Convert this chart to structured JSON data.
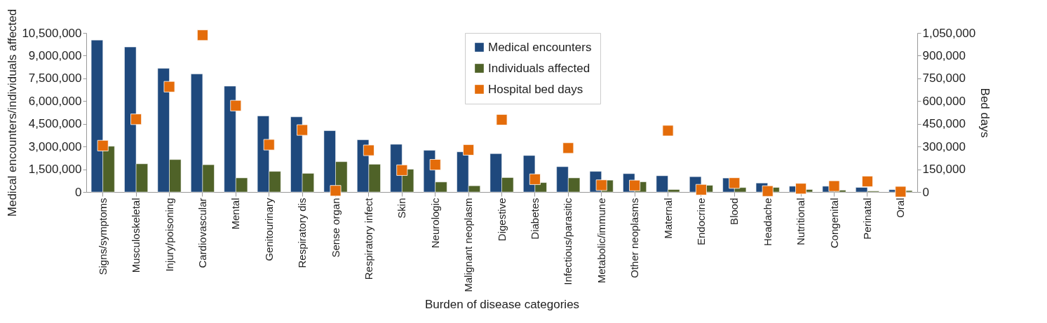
{
  "chart_data": {
    "type": "bar",
    "xlabel": "Burden of disease categories",
    "ylabel": "Medical encounters/individuals affected",
    "y2label": "Bed days",
    "categories": [
      "Signs/symptoms",
      "Musculoskeletal",
      "Injury/poisoning",
      "Cardiovascular",
      "Mental",
      "Genitourinary",
      "Respiratory dis",
      "Sense organ",
      "Respiratory infect",
      "Skin",
      "Neurologic",
      "Malignant neoplasm",
      "Digestive",
      "Diabetes",
      "Infectious/parasitic",
      "Metabolic/immune",
      "Other neoplasms",
      "Maternal",
      "Endocrine",
      "Blood",
      "Headache",
      "Nutritional",
      "Congenital",
      "Perinatal",
      "Oral"
    ],
    "series": [
      {
        "name": "Medical encounters",
        "color": "#1f497d",
        "values": [
          10030000,
          9570000,
          8160000,
          7790000,
          6990000,
          5020000,
          4960000,
          4050000,
          3450000,
          3150000,
          2750000,
          2650000,
          2530000,
          2410000,
          1670000,
          1360000,
          1210000,
          1070000,
          1010000,
          920000,
          590000,
          380000,
          380000,
          300000,
          150000
        ]
      },
      {
        "name": "Individuals affected",
        "color": "#4f6228",
        "values": [
          3020000,
          1860000,
          2140000,
          1800000,
          930000,
          1360000,
          1230000,
          2000000,
          1830000,
          1500000,
          660000,
          410000,
          950000,
          620000,
          930000,
          780000,
          670000,
          160000,
          440000,
          290000,
          300000,
          160000,
          120000,
          60000,
          90000
        ]
      },
      {
        "name": "Hospital bed days",
        "type": "scatter",
        "axis": "y2",
        "marker": "square",
        "color": "#e46c0a",
        "values": [
          306000,
          480000,
          695000,
          1035000,
          570000,
          312000,
          409000,
          8000,
          275000,
          144000,
          180000,
          278000,
          477000,
          84000,
          290000,
          45000,
          43000,
          405000,
          15000,
          59000,
          6000,
          22000,
          39000,
          70000,
          2000
        ]
      }
    ],
    "ylim": [
      0,
      10500000
    ],
    "yticks": [
      0,
      {
        "value": 1500000,
        "label": "1,500,000"
      },
      {
        "value": 3000000,
        "label": "3,000,000"
      },
      {
        "value": 4500000,
        "label": "4,500,000"
      },
      {
        "value": 6000000,
        "label": "6,000,000"
      },
      {
        "value": 7500000,
        "label": "7,500,000"
      },
      {
        "value": 9000000,
        "label": "9,000,000"
      },
      {
        "value": 10500000,
        "label": "10,500,000"
      }
    ],
    "y2lim": [
      0,
      1050000
    ],
    "y2ticks": [
      0,
      {
        "value": 150000,
        "label": "150,000"
      },
      {
        "value": 300000,
        "label": "300,000"
      },
      {
        "value": 450000,
        "label": "450,000"
      },
      {
        "value": 600000,
        "label": "600,000"
      },
      {
        "value": 750000,
        "label": "750,000"
      },
      {
        "value": 900000,
        "label": "900,000"
      },
      {
        "value": 1050000,
        "label": "1,050,000"
      }
    ],
    "grid": false,
    "legend": "top"
  }
}
